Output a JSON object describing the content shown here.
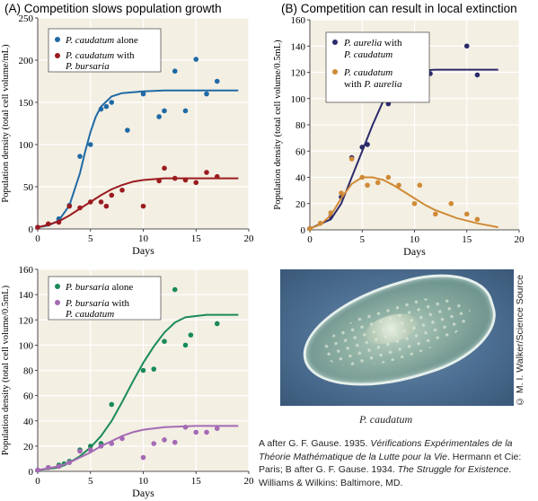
{
  "charts": {
    "chart_data": [
      {
        "type": "scatter",
        "panel": "A-top",
        "title": "(A)  Competition slows population growth",
        "xlabel": "Days",
        "ylabel": "Population density (total cell volume/mL)",
        "xlim": [
          0,
          20
        ],
        "ylim": [
          0,
          250
        ],
        "xticks": [
          0,
          5,
          10,
          15,
          20
        ],
        "yticks": [
          0,
          50,
          100,
          150,
          200,
          250
        ],
        "legend_position": "top-left",
        "grid": true,
        "series": [
          {
            "name": "P. caudatum alone",
            "color": "#1f6aa5",
            "points": [
              [
                0,
                2
              ],
              [
                2,
                12
              ],
              [
                3,
                28
              ],
              [
                4,
                86
              ],
              [
                5,
                100
              ],
              [
                6,
                142
              ],
              [
                6.5,
                145
              ],
              [
                7,
                150
              ],
              [
                8.5,
                117
              ],
              [
                10,
                160
              ],
              [
                11.5,
                133
              ],
              [
                12,
                140
              ],
              [
                13,
                187
              ],
              [
                14,
                140
              ],
              [
                15,
                201
              ],
              [
                16,
                160
              ],
              [
                17,
                175
              ]
            ],
            "curve": [
              [
                0,
                2
              ],
              [
                1,
                4
              ],
              [
                2,
                10
              ],
              [
                3,
                28
              ],
              [
                4,
                66
              ],
              [
                4.5,
                92
              ],
              [
                5,
                115
              ],
              [
                5.5,
                133
              ],
              [
                6,
                145
              ],
              [
                7,
                157
              ],
              [
                8,
                161
              ],
              [
                10,
                163
              ],
              [
                12,
                164
              ],
              [
                15,
                164
              ],
              [
                19,
                164
              ]
            ]
          },
          {
            "name": "P. caudatum with P. bursaria",
            "color": "#9b1b1f",
            "points": [
              [
                0,
                2
              ],
              [
                1,
                6
              ],
              [
                2,
                8
              ],
              [
                3,
                27
              ],
              [
                4,
                25
              ],
              [
                5,
                32
              ],
              [
                6,
                32
              ],
              [
                6.5,
                27
              ],
              [
                7,
                40
              ],
              [
                8,
                46
              ],
              [
                10,
                27
              ],
              [
                11.5,
                57
              ],
              [
                12,
                72
              ],
              [
                13,
                60
              ],
              [
                14,
                58
              ],
              [
                15,
                55
              ],
              [
                16,
                67
              ],
              [
                17,
                62
              ]
            ],
            "curve": [
              [
                0,
                2
              ],
              [
                1,
                5
              ],
              [
                2,
                9
              ],
              [
                3,
                16
              ],
              [
                4,
                24
              ],
              [
                5,
                32
              ],
              [
                6,
                40
              ],
              [
                7,
                47
              ],
              [
                8,
                52
              ],
              [
                9,
                56
              ],
              [
                10,
                58
              ],
              [
                12,
                60
              ],
              [
                15,
                60
              ],
              [
                19,
                60
              ]
            ]
          }
        ]
      },
      {
        "type": "scatter",
        "panel": "A-bottom",
        "title": "",
        "xlabel": "Days",
        "ylabel": "Population density (total cell volume/0.5mL)",
        "xlim": [
          0,
          20
        ],
        "ylim": [
          0,
          160
        ],
        "xticks": [
          0,
          5,
          10,
          15,
          20
        ],
        "yticks": [
          0,
          20,
          40,
          60,
          80,
          100,
          120,
          140,
          160
        ],
        "legend_position": "top-left",
        "grid": true,
        "series": [
          {
            "name": "P. bursaria alone",
            "color": "#1a8a5a",
            "points": [
              [
                0,
                1
              ],
              [
                1,
                3
              ],
              [
                2,
                5
              ],
              [
                2.5,
                6
              ],
              [
                3,
                8
              ],
              [
                4,
                17
              ],
              [
                5,
                20
              ],
              [
                6,
                22
              ],
              [
                7,
                53
              ],
              [
                10,
                80
              ],
              [
                11,
                81
              ],
              [
                12,
                103
              ],
              [
                13,
                144
              ],
              [
                14,
                100
              ],
              [
                14.5,
                108
              ],
              [
                17,
                117
              ]
            ],
            "curve": [
              [
                0,
                1
              ],
              [
                2,
                3
              ],
              [
                3,
                7
              ],
              [
                4,
                12
              ],
              [
                5,
                19
              ],
              [
                6,
                28
              ],
              [
                7,
                40
              ],
              [
                8,
                55
              ],
              [
                9,
                71
              ],
              [
                10,
                86
              ],
              [
                11,
                99
              ],
              [
                12,
                110
              ],
              [
                13,
                118
              ],
              [
                14,
                122
              ],
              [
                16,
                124
              ],
              [
                19,
                124
              ]
            ]
          },
          {
            "name": "P. bursaria with P. caudatum",
            "color": "#a56ab5",
            "points": [
              [
                0,
                1
              ],
              [
                1,
                3
              ],
              [
                2,
                4
              ],
              [
                3,
                7
              ],
              [
                4,
                16
              ],
              [
                5,
                17
              ],
              [
                6,
                20
              ],
              [
                7,
                22
              ],
              [
                8,
                26
              ],
              [
                10,
                11
              ],
              [
                11,
                22
              ],
              [
                12,
                25
              ],
              [
                13,
                23
              ],
              [
                14,
                35
              ],
              [
                15,
                31
              ],
              [
                16,
                31
              ],
              [
                17,
                34
              ]
            ],
            "curve": [
              [
                0,
                1
              ],
              [
                2,
                4
              ],
              [
                3,
                7
              ],
              [
                4,
                11
              ],
              [
                5,
                15
              ],
              [
                6,
                20
              ],
              [
                7,
                24
              ],
              [
                8,
                28
              ],
              [
                9,
                31
              ],
              [
                10,
                33
              ],
              [
                12,
                35
              ],
              [
                15,
                36
              ],
              [
                19,
                36
              ]
            ]
          }
        ]
      },
      {
        "type": "scatter",
        "panel": "B",
        "title": "(B)  Competition can result in local extinction",
        "xlabel": "Days",
        "ylabel": "Population density (total cell volume/0.5mL)",
        "xlim": [
          0,
          20
        ],
        "ylim": [
          0,
          160
        ],
        "xticks": [
          0,
          5,
          10,
          15,
          20
        ],
        "yticks": [
          0,
          20,
          40,
          60,
          80,
          100,
          120,
          140,
          160
        ],
        "legend_position": "top-left",
        "grid": true,
        "series": [
          {
            "name": "P. aurelia with P. caudatum",
            "color": "#2b2a6b",
            "points": [
              [
                0,
                1
              ],
              [
                2,
                10
              ],
              [
                3,
                25
              ],
              [
                4,
                55
              ],
              [
                5,
                63
              ],
              [
                5.5,
                65
              ],
              [
                7,
                99
              ],
              [
                7.5,
                96
              ],
              [
                10,
                112
              ],
              [
                11.5,
                119
              ],
              [
                15,
                140
              ],
              [
                16,
                118
              ]
            ],
            "curve": [
              [
                0,
                1
              ],
              [
                2,
                8
              ],
              [
                3,
                20
              ],
              [
                4,
                40
              ],
              [
                5,
                60
              ],
              [
                6,
                80
              ],
              [
                7,
                98
              ],
              [
                8,
                111
              ],
              [
                9,
                118
              ],
              [
                10,
                121
              ],
              [
                12,
                122
              ],
              [
                15,
                122
              ],
              [
                18,
                122
              ]
            ]
          },
          {
            "name": "P. caudatum with P. aurelia",
            "color": "#d08a36",
            "points": [
              [
                0,
                1
              ],
              [
                1,
                5
              ],
              [
                2,
                13
              ],
              [
                3,
                28
              ],
              [
                4,
                54
              ],
              [
                5,
                40
              ],
              [
                5.5,
                34
              ],
              [
                6.5,
                36
              ],
              [
                7.5,
                40
              ],
              [
                8.5,
                34
              ],
              [
                10,
                20
              ],
              [
                10.5,
                34
              ],
              [
                12,
                12
              ],
              [
                13.5,
                20
              ],
              [
                15,
                12
              ],
              [
                16,
                8
              ]
            ],
            "curve": [
              [
                0,
                1
              ],
              [
                1,
                4
              ],
              [
                2,
                11
              ],
              [
                3,
                24
              ],
              [
                4,
                35
              ],
              [
                5,
                40
              ],
              [
                6,
                40
              ],
              [
                7,
                38
              ],
              [
                8,
                34
              ],
              [
                9,
                29
              ],
              [
                10,
                24
              ],
              [
                11,
                19
              ],
              [
                12,
                15
              ],
              [
                14,
                9
              ],
              [
                16,
                5
              ],
              [
                18,
                2
              ]
            ]
          }
        ]
      }
    ]
  },
  "legendA1": {
    "s1": "P. caudatum",
    "s1b": " alone",
    "s2": "P. caudatum",
    "s2b": " with",
    "s2c": "P. bursaria"
  },
  "legendA2": {
    "s1": "P. bursaria",
    "s1b": " alone",
    "s2": "P. bursaria",
    "s2b": " with",
    "s2c": "P. caudatum"
  },
  "legendB": {
    "s1": "P. aurelia",
    "s1b": " with",
    "s1c": "P. caudatum",
    "s2": "P. caudatum",
    "s2c": "with ",
    "s2d": "P. aurelia"
  },
  "photo": {
    "caption": "P. caudatum",
    "credit": "© M. I. Walker/Science Source"
  },
  "source": {
    "line1": "A after G. F. Gause. 1935. ",
    "line1i": "Vérifications Expérimentales de la Théorie Mathématique de la Lutte pour la Vie",
    "line2": ". Hermann et Cie: Paris; B after G. F. Gause. 1934. ",
    "line2i": "The Struggle for Existence",
    "line3": ". Williams & Wilkins: Baltimore, MD."
  }
}
